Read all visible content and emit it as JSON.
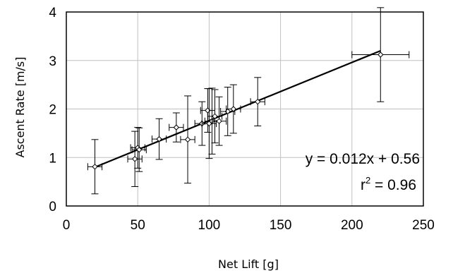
{
  "chart_data": {
    "type": "scatter",
    "xlabel": "Net Lift [g]",
    "ylabel": "Ascent Rate [m/s]",
    "xlim": [
      0,
      250
    ],
    "ylim": [
      0,
      4
    ],
    "x_ticks": [
      "0",
      "50",
      "100",
      "150",
      "200",
      "250"
    ],
    "y_ticks": [
      "0",
      "1",
      "2",
      "3",
      "4"
    ],
    "grid": true,
    "legend": "none",
    "points": [
      {
        "x": 20,
        "y": 0.81,
        "xerr": 5,
        "yerr": 0.56
      },
      {
        "x": 48,
        "y": 0.97,
        "xerr": 5,
        "yerr": 0.57
      },
      {
        "x": 50,
        "y": 1.2,
        "xerr": 5,
        "yerr": 0.42
      },
      {
        "x": 51,
        "y": 1.16,
        "xerr": 5,
        "yerr": 0.45
      },
      {
        "x": 65,
        "y": 1.38,
        "xerr": 5,
        "yerr": 0.42
      },
      {
        "x": 77,
        "y": 1.62,
        "xerr": 5,
        "yerr": 0.3
      },
      {
        "x": 85,
        "y": 1.37,
        "xerr": 5,
        "yerr": 0.9
      },
      {
        "x": 95,
        "y": 1.7,
        "xerr": 5,
        "yerr": 0.45
      },
      {
        "x": 99,
        "y": 1.97,
        "xerr": 5,
        "yerr": 0.45
      },
      {
        "x": 100,
        "y": 1.7,
        "xerr": 5,
        "yerr": 0.72
      },
      {
        "x": 102,
        "y": 1.75,
        "xerr": 5,
        "yerr": 0.68
      },
      {
        "x": 104,
        "y": 1.85,
        "xerr": 5,
        "yerr": 0.55
      },
      {
        "x": 107,
        "y": 1.75,
        "xerr": 5,
        "yerr": 0.5
      },
      {
        "x": 113,
        "y": 1.95,
        "xerr": 5,
        "yerr": 0.5
      },
      {
        "x": 117,
        "y": 2.0,
        "xerr": 5,
        "yerr": 0.5
      },
      {
        "x": 134,
        "y": 2.15,
        "xerr": 5,
        "yerr": 0.5
      },
      {
        "x": 220,
        "y": 3.12,
        "xerr": 20,
        "yerr": 0.97
      }
    ],
    "fit": {
      "slope": 0.012,
      "intercept": 0.56,
      "x_start": 20,
      "x_end": 220
    },
    "annotations": {
      "equation": "y = 0.012x + 0.56",
      "r_squared_prefix": "r",
      "r_squared_exp": "2",
      "r_squared_suffix": " = 0.96"
    }
  }
}
